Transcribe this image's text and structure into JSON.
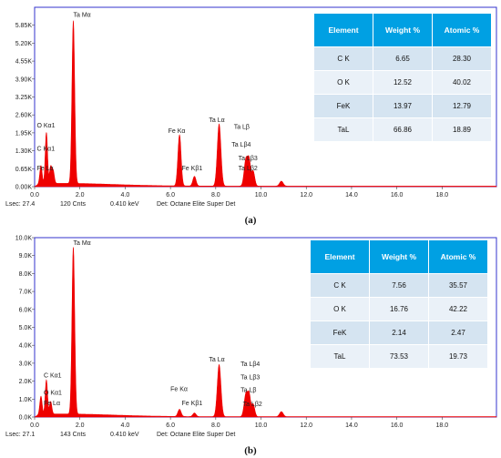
{
  "panels": [
    {
      "caption": "(a)",
      "status": {
        "lsec": "Lsec: 27.4",
        "cnts": "120 Cnts",
        "kev": "0.410 keV",
        "det": "Det: Octane Elite Super Det"
      },
      "table": {
        "headers": [
          "Element",
          "Weight %",
          "Atomic %"
        ],
        "rows": [
          [
            "C K",
            "6.65",
            "28.30"
          ],
          [
            "O K",
            "12.52",
            "40.02"
          ],
          [
            "FeK",
            "13.97",
            "12.79"
          ],
          [
            "TaL",
            "66.86",
            "18.89"
          ]
        ]
      }
    },
    {
      "caption": "(b)",
      "status": {
        "lsec": "Lsec: 27.1",
        "cnts": "143 Cnts",
        "kev": "0.410 keV",
        "det": "Det: Octane Elite Super Det"
      },
      "table": {
        "headers": [
          "Element",
          "Weight %",
          "Atomic %"
        ],
        "rows": [
          [
            "C K",
            "7.56",
            "35.57"
          ],
          [
            "O K",
            "16.76",
            "42.22"
          ],
          [
            "FeK",
            "2.14",
            "2.47"
          ],
          [
            "TaL",
            "73.53",
            "19.73"
          ]
        ]
      }
    }
  ],
  "chart_data": [
    {
      "type": "area",
      "fill_color": "#ee0000",
      "frame_color": "#3333cc",
      "xlim": [
        0,
        20.4
      ],
      "ylim": [
        0,
        6.5
      ],
      "x_ticks": [
        0.0,
        2.0,
        4.0,
        6.0,
        8.0,
        10.0,
        12.0,
        14.0,
        16.0,
        18.0
      ],
      "x_tick_labels": [
        "0.0",
        "2.0",
        "4.0",
        "6.0",
        "8.0",
        "10.0",
        "12.0",
        "14.0",
        "16.0",
        "18.0"
      ],
      "y_ticks": [
        0,
        0.65,
        1.3,
        1.95,
        2.6,
        3.25,
        3.9,
        4.55,
        5.2,
        5.85
      ],
      "y_tick_labels": [
        "0.00K",
        "0.65K",
        "1.30K",
        "1.95K",
        "2.60K",
        "3.25K",
        "3.90K",
        "4.55K",
        "5.20K",
        "5.85K"
      ],
      "background": 0.1,
      "peaks": [
        {
          "x": 0.28,
          "y": 0.65,
          "w": 0.05
        },
        {
          "x": 0.52,
          "y": 1.85,
          "w": 0.05
        },
        {
          "x": 0.71,
          "y": 0.6,
          "w": 0.05
        },
        {
          "x": 0.82,
          "y": 0.45,
          "w": 0.05
        },
        {
          "x": 1.71,
          "y": 5.9,
          "w": 0.06
        },
        {
          "x": 6.4,
          "y": 1.85,
          "w": 0.07
        },
        {
          "x": 7.06,
          "y": 0.35,
          "w": 0.07
        },
        {
          "x": 8.15,
          "y": 2.25,
          "w": 0.08
        },
        {
          "x": 9.34,
          "y": 1.0,
          "w": 0.08
        },
        {
          "x": 9.48,
          "y": 0.8,
          "w": 0.06
        },
        {
          "x": 9.65,
          "y": 0.55,
          "w": 0.07
        },
        {
          "x": 10.9,
          "y": 0.18,
          "w": 0.08
        }
      ],
      "peak_labels": [
        {
          "text": "Ta Mα",
          "x": 1.71,
          "y": 6.15
        },
        {
          "text": "O  Kα1",
          "x": 0.1,
          "y": 2.15
        },
        {
          "text": "C  Kα1",
          "x": 0.1,
          "y": 1.3
        },
        {
          "text": "Fe Lα",
          "x": 0.1,
          "y": 0.6
        },
        {
          "text": "Fe Kα",
          "x": 5.9,
          "y": 1.95
        },
        {
          "text": "Fe Kβ1",
          "x": 6.5,
          "y": 0.6
        },
        {
          "text": "Ta Lα",
          "x": 7.7,
          "y": 2.35
        },
        {
          "text": "Ta Lβ",
          "x": 8.8,
          "y": 2.1
        },
        {
          "text": "Ta Lβ4",
          "x": 8.7,
          "y": 1.45
        },
        {
          "text": "Ta Lβ3",
          "x": 9.0,
          "y": 0.95
        },
        {
          "text": "Ta Lβ2",
          "x": 9.0,
          "y": 0.6
        }
      ]
    },
    {
      "type": "area",
      "fill_color": "#ee0000",
      "frame_color": "#3333cc",
      "xlim": [
        0,
        20.4
      ],
      "ylim": [
        0,
        10.0
      ],
      "x_ticks": [
        0.0,
        2.0,
        4.0,
        6.0,
        8.0,
        10.0,
        12.0,
        14.0,
        16.0,
        18.0
      ],
      "x_tick_labels": [
        "0.0",
        "2.0",
        "4.0",
        "6.0",
        "8.0",
        "10.0",
        "12.0",
        "14.0",
        "16.0",
        "18.0"
      ],
      "y_ticks": [
        0,
        1,
        2,
        3,
        4,
        5,
        6,
        7,
        8,
        9,
        10
      ],
      "y_tick_labels": [
        "0.0K",
        "1.0K",
        "2.0K",
        "3.0K",
        "4.0K",
        "5.0K",
        "6.0K",
        "7.0K",
        "8.0K",
        "9.0K",
        "10.0K"
      ],
      "background": 0.15,
      "peaks": [
        {
          "x": 0.28,
          "y": 1.0,
          "w": 0.05
        },
        {
          "x": 0.52,
          "y": 1.9,
          "w": 0.05
        },
        {
          "x": 0.71,
          "y": 0.7,
          "w": 0.05
        },
        {
          "x": 1.71,
          "y": 9.3,
          "w": 0.06
        },
        {
          "x": 6.4,
          "y": 0.4,
          "w": 0.07
        },
        {
          "x": 7.06,
          "y": 0.2,
          "w": 0.07
        },
        {
          "x": 8.15,
          "y": 2.9,
          "w": 0.08
        },
        {
          "x": 9.34,
          "y": 1.3,
          "w": 0.08
        },
        {
          "x": 9.48,
          "y": 1.05,
          "w": 0.06
        },
        {
          "x": 9.65,
          "y": 0.7,
          "w": 0.07
        },
        {
          "x": 10.9,
          "y": 0.28,
          "w": 0.08
        }
      ],
      "peak_labels": [
        {
          "text": "Ta Mα",
          "x": 1.71,
          "y": 9.6
        },
        {
          "text": "C  Kα1",
          "x": 0.4,
          "y": 2.2
        },
        {
          "text": "O  Kα1",
          "x": 0.4,
          "y": 1.25
        },
        {
          "text": "Fe Lα",
          "x": 0.4,
          "y": 0.65
        },
        {
          "text": "Fe Kα",
          "x": 6.0,
          "y": 1.45
        },
        {
          "text": "Fe Kβ1",
          "x": 6.5,
          "y": 0.65
        },
        {
          "text": "Ta Lα",
          "x": 7.7,
          "y": 3.1
        },
        {
          "text": "Ta Lβ4",
          "x": 9.1,
          "y": 2.85
        },
        {
          "text": "Ta Lβ3",
          "x": 9.1,
          "y": 2.1
        },
        {
          "text": "Ta Lβ",
          "x": 9.1,
          "y": 1.4
        },
        {
          "text": "Ta Lβ2",
          "x": 9.2,
          "y": 0.6
        }
      ]
    }
  ]
}
